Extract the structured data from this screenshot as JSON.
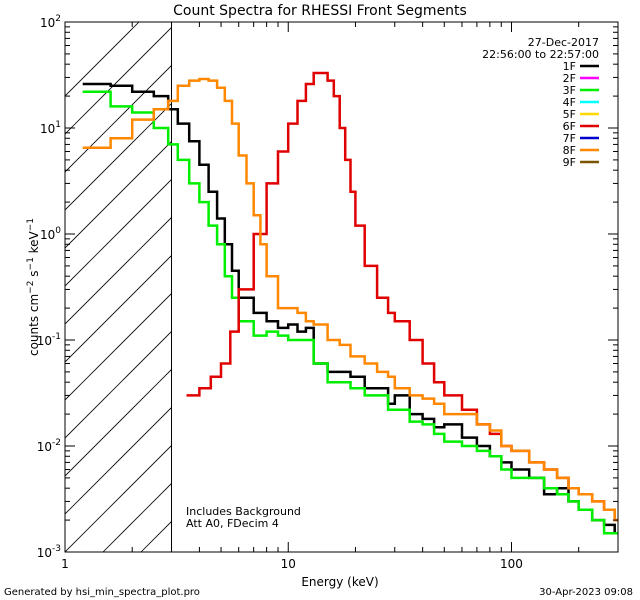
{
  "chart_data": {
    "type": "line",
    "title": "Count Spectra for RHESSI Front Segments",
    "xlabel": "Energy (keV)",
    "ylabel_parts": [
      "counts cm",
      "−2",
      " s",
      "−1",
      " keV",
      "−1"
    ],
    "x_scale": "log",
    "y_scale": "log",
    "xlim": [
      1,
      300
    ],
    "ylim": [
      0.001,
      100
    ],
    "x_tick_labels": [
      {
        "value": 1,
        "label": "1"
      },
      {
        "value": 10,
        "label": "10"
      },
      {
        "value": 100,
        "label": "100"
      }
    ],
    "y_tick_labels": [
      {
        "value": 100,
        "mant": "10",
        "exp": "2"
      },
      {
        "value": 10,
        "mant": "10",
        "exp": "1"
      },
      {
        "value": 1,
        "mant": "10",
        "exp": "0"
      },
      {
        "value": 0.1,
        "mant": "10",
        "exp": "-1"
      },
      {
        "value": 0.01,
        "mant": "10",
        "exp": "-2"
      },
      {
        "value": 0.001,
        "mant": "10",
        "exp": "-3"
      }
    ],
    "date": "27-Dec-2017",
    "time_range": "22:56:00 to 22:57:00",
    "notes": [
      "Includes Background",
      "Att A0, FDecim 4"
    ],
    "hatch_below_keV": 3,
    "legend": [
      {
        "name": "1F",
        "color": "#000000"
      },
      {
        "name": "2F",
        "color": "#ff00ff"
      },
      {
        "name": "3F",
        "color": "#00ee00"
      },
      {
        "name": "4F",
        "color": "#00ffff"
      },
      {
        "name": "5F",
        "color": "#ffd700"
      },
      {
        "name": "6F",
        "color": "#e00000"
      },
      {
        "name": "7F",
        "color": "#0000cc"
      },
      {
        "name": "8F",
        "color": "#ff8800"
      },
      {
        "name": "9F",
        "color": "#7a5500"
      }
    ],
    "series": [
      {
        "name": "1F",
        "color": "#000000",
        "points": [
          [
            1.2,
            26
          ],
          [
            1.6,
            25
          ],
          [
            2.0,
            22
          ],
          [
            2.5,
            20
          ],
          [
            2.9,
            15
          ],
          [
            3.2,
            11
          ],
          [
            3.6,
            7.5
          ],
          [
            4.0,
            4.5
          ],
          [
            4.4,
            2.5
          ],
          [
            4.8,
            1.4
          ],
          [
            5.2,
            0.8
          ],
          [
            5.6,
            0.45
          ],
          [
            6.0,
            0.25
          ],
          [
            7.0,
            0.18
          ],
          [
            8.0,
            0.15
          ],
          [
            9.0,
            0.13
          ],
          [
            10,
            0.14
          ],
          [
            11,
            0.12
          ],
          [
            12,
            0.13
          ],
          [
            13,
            0.06
          ],
          [
            15,
            0.05
          ],
          [
            17,
            0.05
          ],
          [
            19,
            0.045
          ],
          [
            22,
            0.035
          ],
          [
            25,
            0.035
          ],
          [
            28,
            0.025
          ],
          [
            30,
            0.03
          ],
          [
            35,
            0.02
          ],
          [
            40,
            0.018
          ],
          [
            45,
            0.015
          ],
          [
            50,
            0.016
          ],
          [
            60,
            0.012
          ],
          [
            70,
            0.01
          ],
          [
            80,
            0.008
          ],
          [
            90,
            0.007
          ],
          [
            100,
            0.006
          ],
          [
            120,
            0.005
          ],
          [
            140,
            0.0035
          ],
          [
            160,
            0.004
          ],
          [
            180,
            0.003
          ],
          [
            200,
            0.0025
          ],
          [
            230,
            0.002
          ],
          [
            260,
            0.0018
          ],
          [
            290,
            0.0015
          ]
        ]
      },
      {
        "name": "3F",
        "color": "#00ee00",
        "points": [
          [
            1.2,
            22
          ],
          [
            1.6,
            16
          ],
          [
            2.0,
            14
          ],
          [
            2.5,
            10
          ],
          [
            2.9,
            7
          ],
          [
            3.2,
            5
          ],
          [
            3.6,
            3
          ],
          [
            4.0,
            2
          ],
          [
            4.4,
            1.2
          ],
          [
            4.8,
            0.8
          ],
          [
            5.2,
            0.4
          ],
          [
            5.6,
            0.25
          ],
          [
            6.0,
            0.15
          ],
          [
            7.0,
            0.11
          ],
          [
            8.0,
            0.12
          ],
          [
            9.0,
            0.11
          ],
          [
            10,
            0.1
          ],
          [
            11,
            0.1
          ],
          [
            12,
            0.1
          ],
          [
            13,
            0.06
          ],
          [
            15,
            0.04
          ],
          [
            17,
            0.04
          ],
          [
            19,
            0.035
          ],
          [
            22,
            0.03
          ],
          [
            25,
            0.03
          ],
          [
            28,
            0.022
          ],
          [
            30,
            0.022
          ],
          [
            35,
            0.017
          ],
          [
            40,
            0.016
          ],
          [
            45,
            0.013
          ],
          [
            50,
            0.011
          ],
          [
            60,
            0.01
          ],
          [
            70,
            0.009
          ],
          [
            80,
            0.008
          ],
          [
            90,
            0.006
          ],
          [
            100,
            0.005
          ],
          [
            120,
            0.005
          ],
          [
            140,
            0.004
          ],
          [
            160,
            0.0035
          ],
          [
            180,
            0.003
          ],
          [
            200,
            0.0025
          ],
          [
            230,
            0.002
          ],
          [
            260,
            0.0015
          ],
          [
            290,
            0.0015
          ]
        ]
      },
      {
        "name": "6F",
        "color": "#e00000",
        "points": [
          [
            3.5,
            0.03
          ],
          [
            4.0,
            0.035
          ],
          [
            4.5,
            0.045
          ],
          [
            5.0,
            0.06
          ],
          [
            5.5,
            0.12
          ],
          [
            6.0,
            0.3
          ],
          [
            7.0,
            1.0
          ],
          [
            8.0,
            3.0
          ],
          [
            9.0,
            6.0
          ],
          [
            10,
            11
          ],
          [
            11,
            18
          ],
          [
            12,
            26
          ],
          [
            13,
            33
          ],
          [
            14,
            33
          ],
          [
            15,
            28
          ],
          [
            16,
            20
          ],
          [
            17,
            10
          ],
          [
            18,
            5
          ],
          [
            19,
            2.5
          ],
          [
            20,
            1.2
          ],
          [
            22,
            0.5
          ],
          [
            25,
            0.25
          ],
          [
            28,
            0.18
          ],
          [
            30,
            0.15
          ],
          [
            35,
            0.1
          ],
          [
            40,
            0.06
          ],
          [
            45,
            0.04
          ],
          [
            50,
            0.03
          ],
          [
            60,
            0.022
          ],
          [
            70,
            0.016
          ],
          [
            80,
            0.013
          ],
          [
            90,
            0.01
          ],
          [
            100,
            0.009
          ],
          [
            120,
            0.007
          ],
          [
            140,
            0.006
          ],
          [
            160,
            0.005
          ],
          [
            180,
            0.004
          ],
          [
            200,
            0.0035
          ],
          [
            230,
            0.003
          ],
          [
            260,
            0.0025
          ],
          [
            290,
            0.002
          ]
        ]
      },
      {
        "name": "8F",
        "color": "#ff8800",
        "points": [
          [
            1.2,
            6.5
          ],
          [
            1.6,
            8
          ],
          [
            2.0,
            12
          ],
          [
            2.5,
            15
          ],
          [
            2.9,
            18
          ],
          [
            3.2,
            25
          ],
          [
            3.6,
            28
          ],
          [
            4.0,
            29
          ],
          [
            4.4,
            28
          ],
          [
            4.8,
            24
          ],
          [
            5.2,
            18
          ],
          [
            5.6,
            11
          ],
          [
            6.0,
            5.5
          ],
          [
            6.5,
            3
          ],
          [
            7.0,
            1.5
          ],
          [
            7.5,
            0.8
          ],
          [
            8.0,
            0.4
          ],
          [
            9.0,
            0.2
          ],
          [
            10,
            0.2
          ],
          [
            11,
            0.18
          ],
          [
            12,
            0.15
          ],
          [
            13,
            0.14
          ],
          [
            15,
            0.1
          ],
          [
            17,
            0.09
          ],
          [
            19,
            0.07
          ],
          [
            22,
            0.06
          ],
          [
            25,
            0.05
          ],
          [
            28,
            0.045
          ],
          [
            30,
            0.035
          ],
          [
            35,
            0.03
          ],
          [
            40,
            0.028
          ],
          [
            45,
            0.025
          ],
          [
            50,
            0.02
          ],
          [
            60,
            0.02
          ],
          [
            70,
            0.016
          ],
          [
            80,
            0.014
          ],
          [
            90,
            0.01
          ],
          [
            100,
            0.009
          ],
          [
            120,
            0.007
          ],
          [
            140,
            0.006
          ],
          [
            160,
            0.005
          ],
          [
            180,
            0.004
          ],
          [
            200,
            0.0035
          ],
          [
            230,
            0.003
          ],
          [
            260,
            0.0025
          ],
          [
            290,
            0.002
          ]
        ]
      }
    ]
  },
  "footer": {
    "generated_by": "Generated by hsi_min_spectra_plot.pro",
    "timestamp": "30-Apr-2023 09:08"
  }
}
